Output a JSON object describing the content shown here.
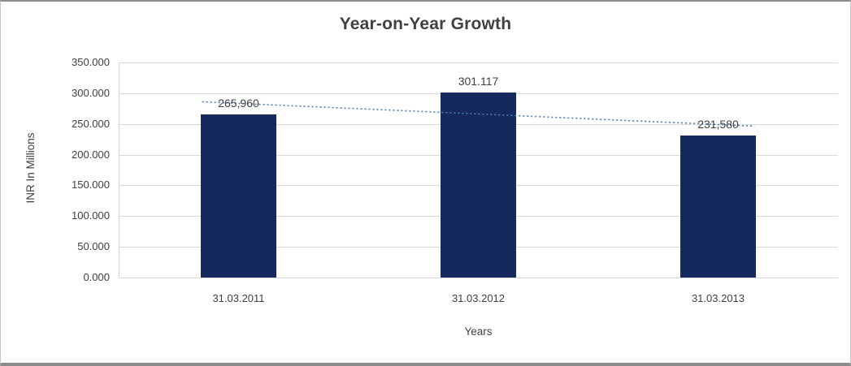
{
  "chart_data": {
    "type": "bar",
    "title": "Year-on-Year Growth",
    "categories": [
      "31.03.2011",
      "31.03.2012",
      "31.03.2013"
    ],
    "values": [
      265960,
      301117,
      231580
    ],
    "data_labels": [
      "265,960",
      "301.117",
      "231,580"
    ],
    "xlabel": "Years",
    "ylabel": "INR In Millions",
    "ylim": [
      0,
      350000
    ],
    "ytick_step": 50000,
    "ytick_labels": [
      "0.000",
      "50.000",
      "100.000",
      "150.000",
      "200.000",
      "250.000",
      "300.000",
      "350.000"
    ],
    "grid": true,
    "legend": "none",
    "bar_color": "#15295e",
    "gridline_color": "#d9d9d9",
    "text_color": "#404040",
    "trendline": {
      "style": "dotted",
      "color": "#4a7cb5",
      "dash": "2 3",
      "x_start_frac": 0.116,
      "x_end_frac": 0.884,
      "value_start": 286000,
      "value_end": 246400
    }
  }
}
